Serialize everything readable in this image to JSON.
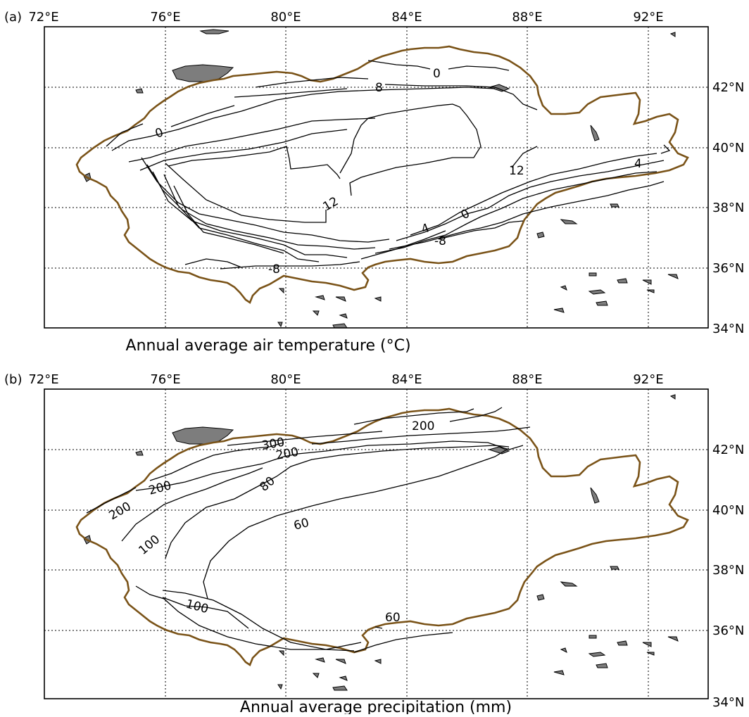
{
  "panels": [
    {
      "id": "a",
      "panel_label": "(a)",
      "title": "Annual average air temperature",
      "title_unit": "(°C)",
      "lon_labels": [
        "72°E",
        "76°E",
        "80°E",
        "84°E",
        "88°E",
        "92°E"
      ],
      "lat_labels": [
        "42°N",
        "40°N",
        "38°N",
        "36°N",
        "34°N"
      ],
      "contour_labels": [
        "0",
        "8",
        "0",
        "12",
        "12",
        "4",
        "4",
        "0",
        "-8",
        "-8"
      ]
    },
    {
      "id": "b",
      "panel_label": "(b)",
      "title": "Annual average precipitation (mm)",
      "lon_labels": [
        "72°E",
        "76°E",
        "80°E",
        "84°E",
        "88°E",
        "92°E"
      ],
      "lat_labels": [
        "42°N",
        "40°N",
        "38°N",
        "36°N",
        "34°N"
      ],
      "contour_labels": [
        "200",
        "300",
        "200",
        "80",
        "200",
        "200",
        "100",
        "60",
        "100",
        "60"
      ]
    }
  ],
  "colors": {
    "basin_outline": "#7a5318",
    "lake_fill": "#7d7d7d",
    "contour": "#000000"
  }
}
